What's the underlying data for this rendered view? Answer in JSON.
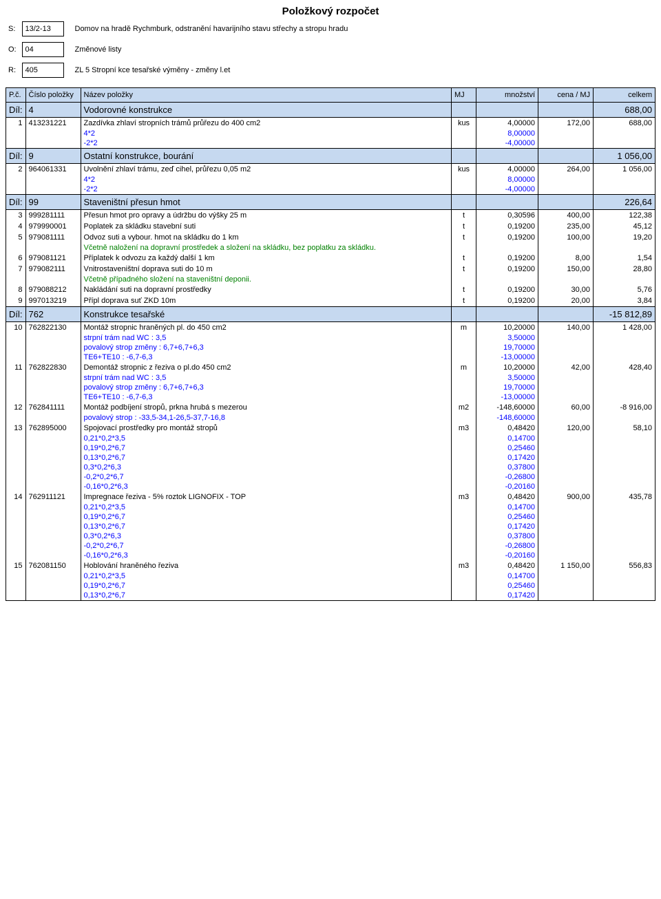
{
  "title": "Položkový rozpočet",
  "header": {
    "s_label": "S:",
    "s_val": "13/2-13",
    "s_desc": "Domov na hradě Rychmburk, odstranění havarijního stavu střechy a stropu hradu",
    "o_label": "O:",
    "o_val": "04",
    "o_desc": "Změnové listy",
    "r_label": "R:",
    "r_val": "405",
    "r_desc": "ZL 5 Stropní kce tesařské výměny - změny l.et"
  },
  "cols": {
    "pc": "P.č.",
    "cislo": "Číslo položky",
    "nazev": "Název položky",
    "mj": "MJ",
    "mnoz": "množství",
    "cena": "cena / MJ",
    "celkem": "celkem"
  },
  "colors": {
    "header_bg": "#c6d9f0",
    "blue": "#0000ff",
    "green": "#008000"
  },
  "sections": [
    {
      "dil_label": "Díl:",
      "dil": "4",
      "name": "Vodorovné konstrukce",
      "total": "688,00",
      "items": [
        {
          "n": "1",
          "code": "413231221",
          "name": "Zazdívka zhlaví stropních trámů průřezu do 400 cm2",
          "mj": "kus",
          "qty": "4,00000",
          "unit": "172,00",
          "tot": "688,00",
          "calcs": [
            {
              "t": "4*2",
              "v": "8,00000",
              "c": "blue"
            },
            {
              "t": "-2*2",
              "v": "-4,00000",
              "c": "blue"
            }
          ]
        }
      ]
    },
    {
      "dil_label": "Díl:",
      "dil": "9",
      "name": "Ostatní konstrukce, bourání",
      "total": "1 056,00",
      "items": [
        {
          "n": "2",
          "code": "964061331",
          "name": "Uvolnění zhlaví trámu, zeď cihel, průřezu 0,05 m2",
          "mj": "kus",
          "qty": "4,00000",
          "unit": "264,00",
          "tot": "1 056,00",
          "calcs": [
            {
              "t": "4*2",
              "v": "8,00000",
              "c": "blue"
            },
            {
              "t": "-2*2",
              "v": "-4,00000",
              "c": "blue"
            }
          ]
        }
      ]
    },
    {
      "dil_label": "Díl:",
      "dil": "99",
      "name": "Staveništní přesun hmot",
      "total": "226,64",
      "items": [
        {
          "n": "3",
          "code": "999281111",
          "name": "Přesun hmot pro opravy a údržbu do výšky 25 m",
          "mj": "t",
          "qty": "0,30596",
          "unit": "400,00",
          "tot": "122,38"
        },
        {
          "n": "4",
          "code": "979990001",
          "name": "Poplatek za skládku stavební suti",
          "mj": "t",
          "qty": "0,19200",
          "unit": "235,00",
          "tot": "45,12"
        },
        {
          "n": "5",
          "code": "979081111",
          "name": "Odvoz suti a vybour. hmot na skládku do 1 km",
          "mj": "t",
          "qty": "0,19200",
          "unit": "100,00",
          "tot": "19,20",
          "calcs": [
            {
              "t": "Včetně naložení na dopravní prostředek a složení na skládku, bez poplatku za skládku.",
              "v": "",
              "c": "green"
            }
          ]
        },
        {
          "n": "6",
          "code": "979081121",
          "name": "Příplatek k odvozu za každý další 1 km",
          "mj": "t",
          "qty": "0,19200",
          "unit": "8,00",
          "tot": "1,54"
        },
        {
          "n": "7",
          "code": "979082111",
          "name": "Vnitrostaveništní doprava suti do 10 m",
          "mj": "t",
          "qty": "0,19200",
          "unit": "150,00",
          "tot": "28,80",
          "calcs": [
            {
              "t": "Včetně případného složení na staveništní deponii.",
              "v": "",
              "c": "green"
            }
          ]
        },
        {
          "n": "8",
          "code": "979088212",
          "name": "Nakládání suti na dopravní prostředky",
          "mj": "t",
          "qty": "0,19200",
          "unit": "30,00",
          "tot": "5,76"
        },
        {
          "n": "9",
          "code": "997013219",
          "name": "Přípl doprava suť ZKD 10m",
          "mj": "t",
          "qty": "0,19200",
          "unit": "20,00",
          "tot": "3,84"
        }
      ]
    },
    {
      "dil_label": "Díl:",
      "dil": "762",
      "name": "Konstrukce tesařské",
      "total": "-15 812,89",
      "items": [
        {
          "n": "10",
          "code": "762822130",
          "name": "Montáž stropnic hraněných pl. do 450 cm2",
          "mj": "m",
          "qty": "10,20000",
          "unit": "140,00",
          "tot": "1 428,00",
          "calcs": [
            {
              "t": "strpní trám nad WC : 3,5",
              "v": "3,50000",
              "c": "blue"
            },
            {
              "t": "povalový strop změny : 6,7+6,7+6,3",
              "v": "19,70000",
              "c": "blue"
            },
            {
              "t": "TE6+TE10 : -6,7-6,3",
              "v": "-13,00000",
              "c": "blue"
            }
          ]
        },
        {
          "n": "11",
          "code": "762822830",
          "name": "Demontáž stropnic z řeziva o pl.do 450 cm2",
          "mj": "m",
          "qty": "10,20000",
          "unit": "42,00",
          "tot": "428,40",
          "calcs": [
            {
              "t": "strpní trám nad WC : 3,5",
              "v": "3,50000",
              "c": "blue"
            },
            {
              "t": "povalový strop změny : 6,7+6,7+6,3",
              "v": "19,70000",
              "c": "blue"
            },
            {
              "t": "TE6+TE10 : -6,7-6,3",
              "v": "-13,00000",
              "c": "blue"
            }
          ]
        },
        {
          "n": "12",
          "code": "762841111",
          "name": "Montáž podbíjení stropů, prkna hrubá s mezerou",
          "mj": "m2",
          "qty": "-148,60000",
          "unit": "60,00",
          "tot": "-8 916,00",
          "calcs": [
            {
              "t": "povalový strop : -33,5-34,1-26,5-37,7-16,8",
              "v": "-148,60000",
              "c": "blue"
            }
          ]
        },
        {
          "n": "13",
          "code": "762895000",
          "name": "Spojovací prostředky pro montáž stropů",
          "mj": "m3",
          "qty": "0,48420",
          "unit": "120,00",
          "tot": "58,10",
          "calcs": [
            {
              "t": "0,21*0,2*3,5",
              "v": "0,14700",
              "c": "blue"
            },
            {
              "t": "0,19*0,2*6,7",
              "v": "0,25460",
              "c": "blue"
            },
            {
              "t": "0,13*0,2*6,7",
              "v": "0,17420",
              "c": "blue"
            },
            {
              "t": "0,3*0,2*6,3",
              "v": "0,37800",
              "c": "blue"
            },
            {
              "t": "-0,2*0,2*6,7",
              "v": "-0,26800",
              "c": "blue"
            },
            {
              "t": "-0,16*0,2*6,3",
              "v": "-0,20160",
              "c": "blue"
            }
          ]
        },
        {
          "n": "14",
          "code": "762911121",
          "name": "Impregnace řeziva - 5% roztok LIGNOFIX - TOP",
          "mj": "m3",
          "qty": "0,48420",
          "unit": "900,00",
          "tot": "435,78",
          "calcs": [
            {
              "t": "0,21*0,2*3,5",
              "v": "0,14700",
              "c": "blue"
            },
            {
              "t": "0,19*0,2*6,7",
              "v": "0,25460",
              "c": "blue"
            },
            {
              "t": "0,13*0,2*6,7",
              "v": "0,17420",
              "c": "blue"
            },
            {
              "t": "0,3*0,2*6,3",
              "v": "0,37800",
              "c": "blue"
            },
            {
              "t": "-0,2*0,2*6,7",
              "v": "-0,26800",
              "c": "blue"
            },
            {
              "t": "-0,16*0,2*6,3",
              "v": "-0,20160",
              "c": "blue"
            }
          ]
        },
        {
          "n": "15",
          "code": "762081150",
          "name": "Hoblování hraněného řeziva",
          "mj": "m3",
          "qty": "0,48420",
          "unit": "1 150,00",
          "tot": "556,83",
          "calcs": [
            {
              "t": "0,21*0,2*3,5",
              "v": "0,14700",
              "c": "blue"
            },
            {
              "t": "0,19*0,2*6,7",
              "v": "0,25460",
              "c": "blue"
            },
            {
              "t": "0,13*0,2*6,7",
              "v": "0,17420",
              "c": "blue"
            }
          ]
        }
      ]
    }
  ]
}
